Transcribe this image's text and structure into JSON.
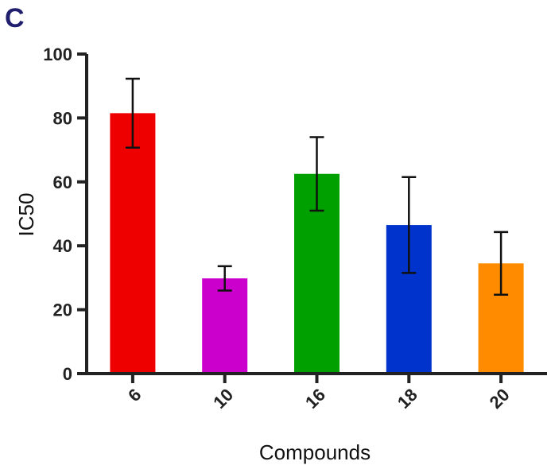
{
  "panel_label": "C",
  "chart_data": {
    "type": "bar",
    "title": "",
    "xlabel": "Compounds",
    "ylabel": "IC50",
    "ylim": [
      0,
      100
    ],
    "yticks": [
      0,
      20,
      40,
      60,
      80,
      100
    ],
    "categories": [
      "6",
      "10",
      "16",
      "18",
      "20"
    ],
    "values": [
      81.5,
      29.8,
      62.5,
      46.5,
      34.5
    ],
    "errors": [
      10.8,
      3.8,
      11.5,
      15,
      9.8
    ],
    "colors": [
      "#ee0000",
      "#cc00cc",
      "#00a000",
      "#0033cc",
      "#ff8c00"
    ],
    "grid": false,
    "legend": "none"
  }
}
